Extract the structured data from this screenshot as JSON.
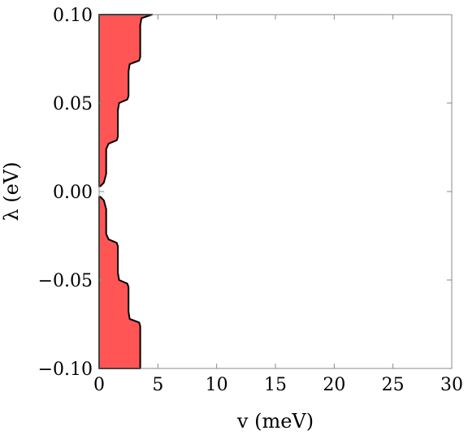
{
  "chart_data": {
    "type": "area",
    "xlabel": "v (meV)",
    "ylabel": "λ (eV)",
    "xlim": [
      0,
      30
    ],
    "ylim": [
      -0.1,
      0.1
    ],
    "x_ticks": [
      "0",
      "5",
      "10",
      "15",
      "20",
      "25",
      "30"
    ],
    "y_ticks": [
      "0.10",
      "0.05",
      "0.00",
      "−0.05",
      "−0.10"
    ],
    "fill_color": "#ff5555",
    "edge_color": "#000000",
    "regions": [
      {
        "boundary": [
          {
            "x": 0.0,
            "y": 0.1
          },
          {
            "x": 4.5,
            "y": 0.1
          },
          {
            "x": 3.6,
            "y": 0.098
          },
          {
            "x": 3.5,
            "y": 0.094
          },
          {
            "x": 3.5,
            "y": 0.076
          },
          {
            "x": 3.4,
            "y": 0.074
          },
          {
            "x": 2.6,
            "y": 0.072
          },
          {
            "x": 2.5,
            "y": 0.068
          },
          {
            "x": 2.5,
            "y": 0.054
          },
          {
            "x": 2.4,
            "y": 0.052
          },
          {
            "x": 1.7,
            "y": 0.05
          },
          {
            "x": 1.6,
            "y": 0.046
          },
          {
            "x": 1.6,
            "y": 0.031
          },
          {
            "x": 1.5,
            "y": 0.029
          },
          {
            "x": 0.8,
            "y": 0.027
          },
          {
            "x": 0.6,
            "y": 0.024
          },
          {
            "x": 0.6,
            "y": 0.01
          },
          {
            "x": 0.4,
            "y": 0.005
          },
          {
            "x": 0.1,
            "y": 0.003
          },
          {
            "x": 0.0,
            "y": 0.003
          }
        ]
      },
      {
        "boundary": [
          {
            "x": 0.0,
            "y": -0.003
          },
          {
            "x": 0.1,
            "y": -0.003
          },
          {
            "x": 0.4,
            "y": -0.005
          },
          {
            "x": 0.6,
            "y": -0.01
          },
          {
            "x": 0.6,
            "y": -0.024
          },
          {
            "x": 0.8,
            "y": -0.027
          },
          {
            "x": 1.5,
            "y": -0.029
          },
          {
            "x": 1.6,
            "y": -0.031
          },
          {
            "x": 1.6,
            "y": -0.046
          },
          {
            "x": 1.7,
            "y": -0.05
          },
          {
            "x": 2.4,
            "y": -0.052
          },
          {
            "x": 2.5,
            "y": -0.054
          },
          {
            "x": 2.5,
            "y": -0.068
          },
          {
            "x": 2.6,
            "y": -0.072
          },
          {
            "x": 3.4,
            "y": -0.074
          },
          {
            "x": 3.5,
            "y": -0.076
          },
          {
            "x": 3.5,
            "y": -0.1
          },
          {
            "x": 0.0,
            "y": -0.1
          }
        ]
      }
    ]
  }
}
